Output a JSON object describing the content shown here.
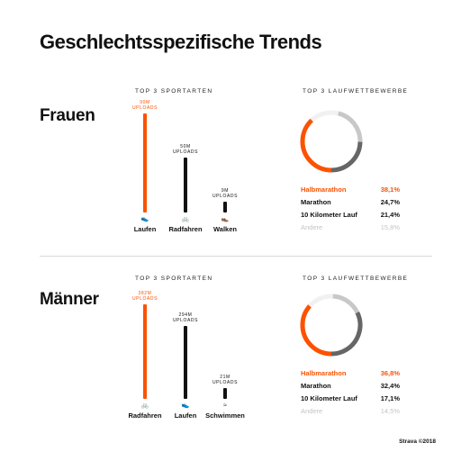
{
  "title": "Geschlechtsspezifische Trends",
  "footer": "Strava ©2018",
  "colors": {
    "accent": "#fc5200",
    "dark": "#111111",
    "mid": "#666666",
    "light": "#c8c8c8",
    "faded": "#c4c4c4"
  },
  "groups": [
    {
      "label": "Frauen",
      "sports_heading": "TOP 3 SPORTARTEN",
      "races_heading": "TOP 3 LAUFWETTBEWERBE",
      "chart_data": {
        "type": "bar",
        "categories": [
          "Laufen",
          "Radfahren",
          "Walken"
        ],
        "values": [
          90,
          50,
          9
        ],
        "value_labels": [
          "90M",
          "50M",
          "9M"
        ],
        "unit_label": "UPLOADS",
        "icons": [
          "running-shoe-icon",
          "bicycle-icon",
          "walking-shoe-icon"
        ]
      },
      "races_chart": {
        "type": "pie",
        "rows": [
          {
            "name": "Halbmarathon",
            "pct": "38,1%",
            "value": 38.1,
            "color": "#fc5200"
          },
          {
            "name": "Marathon",
            "pct": "24,7%",
            "value": 24.7,
            "color": "#666666"
          },
          {
            "name": "10 Kilometer Lauf",
            "pct": "21,4%",
            "value": 21.4,
            "color": "#c8c8c8"
          },
          {
            "name": "Andere",
            "pct": "15,8%",
            "value": 15.8,
            "color": "#f1f1f1"
          }
        ]
      }
    },
    {
      "label": "Männer",
      "sports_heading": "TOP 3 SPORTARTEN",
      "races_heading": "TOP 3 LAUFWETTBEWERBE",
      "chart_data": {
        "type": "bar",
        "categories": [
          "Radfahren",
          "Laufen",
          "Schwimmen"
        ],
        "values": [
          382,
          294,
          21
        ],
        "value_labels": [
          "382M",
          "294M",
          "21M"
        ],
        "unit_label": "UPLOADS",
        "icons": [
          "bicycle-icon",
          "running-shoe-icon",
          "swimming-icon"
        ]
      },
      "races_chart": {
        "type": "pie",
        "rows": [
          {
            "name": "Halbmarathon",
            "pct": "36,8%",
            "value": 36.8,
            "color": "#fc5200"
          },
          {
            "name": "Marathon",
            "pct": "32,4%",
            "value": 32.4,
            "color": "#666666"
          },
          {
            "name": "10 Kilometer Lauf",
            "pct": "17,1%",
            "value": 17.1,
            "color": "#c8c8c8"
          },
          {
            "name": "Andere",
            "pct": "14,5%",
            "value": 14.5,
            "color": "#f1f1f1"
          }
        ]
      }
    }
  ]
}
